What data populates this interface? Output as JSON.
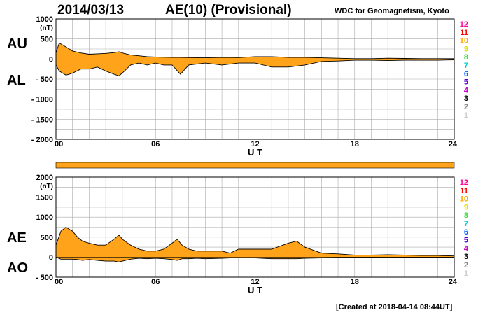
{
  "header": {
    "date": "2014/03/13",
    "title": "AE(10) (Provisional)",
    "source": "WDC for Geomagnetism, Kyoto"
  },
  "footer": {
    "created": "[Created at 2018-04-14 08:44UT]"
  },
  "colors": {
    "fill": "#ffa31a",
    "grid": "#aaaaaa",
    "station_count": [
      "#cccccc",
      "#888888",
      "#000000",
      "#cc00cc",
      "#5500cc",
      "#0066ff",
      "#00cccc",
      "#33dd33",
      "#dddd00",
      "#ffaa00",
      "#ff0000",
      "#ff0099"
    ]
  },
  "station_count_labels": [
    "1",
    "2",
    "3",
    "4",
    "5",
    "6",
    "7",
    "8",
    "9",
    "10",
    "11",
    "12"
  ],
  "chart_data": [
    {
      "type": "area",
      "panel": "upper",
      "upper_label": "AU",
      "lower_label": "AL",
      "unit_label": "(nT)",
      "xlabel": "U T",
      "xlim": [
        0,
        24
      ],
      "xticks": [
        "00",
        "06",
        "12",
        "18",
        "24"
      ],
      "ylim": [
        -2000,
        1000
      ],
      "yticks": [
        "1000",
        "500",
        "0",
        "- 500",
        "- 1000",
        "- 1500",
        "- 2000"
      ],
      "ytick_values": [
        1000,
        500,
        0,
        -500,
        -1000,
        -1500,
        -2000
      ],
      "grid": true,
      "series": [
        {
          "name": "AU",
          "x": [
            0,
            0.2,
            0.4,
            0.6,
            0.8,
            1,
            1.5,
            2,
            2.5,
            3,
            3.5,
            3.8,
            4,
            4.5,
            5,
            5.5,
            6,
            6.5,
            7,
            7.5,
            8,
            9,
            10,
            11,
            12,
            13,
            14,
            15,
            16,
            17,
            18,
            19,
            20,
            21,
            22,
            23,
            24
          ],
          "y": [
            150,
            400,
            350,
            300,
            250,
            200,
            150,
            120,
            130,
            140,
            160,
            180,
            150,
            100,
            80,
            60,
            50,
            45,
            40,
            40,
            35,
            30,
            40,
            35,
            60,
            60,
            40,
            40,
            30,
            20,
            10,
            10,
            20,
            15,
            10,
            10,
            10
          ]
        },
        {
          "name": "AL",
          "x": [
            0,
            0.2,
            0.4,
            0.6,
            0.8,
            1,
            1.5,
            2,
            2.5,
            3,
            3.5,
            3.8,
            4,
            4.5,
            5,
            5.5,
            6,
            6.5,
            7,
            7.5,
            8,
            9,
            10,
            11,
            12,
            13,
            14,
            15,
            16,
            17,
            18,
            19,
            20,
            21,
            22,
            23,
            24
          ],
          "y": [
            -150,
            -300,
            -350,
            -400,
            -380,
            -350,
            -250,
            -250,
            -200,
            -300,
            -380,
            -420,
            -350,
            -150,
            -100,
            -150,
            -100,
            -150,
            -150,
            -380,
            -150,
            -100,
            -150,
            -100,
            -100,
            -200,
            -200,
            -150,
            -60,
            -50,
            -30,
            -30,
            -40,
            -30,
            -30,
            -30,
            -20
          ]
        }
      ]
    },
    {
      "type": "area",
      "panel": "lower",
      "upper_label": "AE",
      "lower_label": "AO",
      "unit_label": "(nT)",
      "xlabel": "U T",
      "xlim": [
        0,
        24
      ],
      "xticks": [
        "00",
        "06",
        "12",
        "18",
        "24"
      ],
      "ylim": [
        -500,
        2000
      ],
      "yticks": [
        "2000",
        "1500",
        "1000",
        "500",
        "0",
        "- 500"
      ],
      "ytick_values": [
        2000,
        1500,
        1000,
        500,
        0,
        -500
      ],
      "grid": true,
      "series": [
        {
          "name": "AE",
          "x": [
            0,
            0.3,
            0.6,
            1,
            1.3,
            1.6,
            2,
            2.5,
            3,
            3.5,
            3.8,
            4,
            4.5,
            5,
            5.5,
            6,
            6.5,
            7,
            7.3,
            7.6,
            8,
            8.5,
            9,
            10,
            10.5,
            11,
            12,
            13,
            14,
            14.5,
            15,
            16,
            17,
            18,
            19,
            20,
            21,
            22,
            23,
            24
          ],
          "y": [
            300,
            650,
            750,
            650,
            500,
            400,
            350,
            300,
            300,
            450,
            550,
            450,
            300,
            200,
            150,
            150,
            200,
            350,
            450,
            300,
            200,
            150,
            150,
            150,
            100,
            200,
            200,
            200,
            350,
            400,
            250,
            100,
            80,
            50,
            50,
            60,
            50,
            40,
            40,
            30
          ]
        },
        {
          "name": "AO",
          "x": [
            0,
            0.3,
            0.6,
            1,
            1.3,
            1.6,
            2,
            2.5,
            3,
            3.5,
            3.8,
            4,
            4.5,
            5,
            5.5,
            6,
            6.5,
            7,
            7.3,
            7.6,
            8,
            8.5,
            9,
            10,
            10.5,
            11,
            12,
            13,
            14,
            14.5,
            15,
            16,
            17,
            18,
            19,
            20,
            21,
            22,
            23,
            24
          ],
          "y": [
            0,
            -50,
            -50,
            -50,
            -60,
            -80,
            -60,
            -80,
            -100,
            -100,
            -120,
            -100,
            -50,
            -30,
            -40,
            -30,
            -40,
            -60,
            -80,
            -40,
            -40,
            -30,
            -40,
            -30,
            -20,
            -20,
            -20,
            -40,
            -40,
            -40,
            -30,
            -20,
            -10,
            -10,
            -5,
            -10,
            -5,
            -5,
            -5,
            -5
          ]
        }
      ]
    }
  ]
}
